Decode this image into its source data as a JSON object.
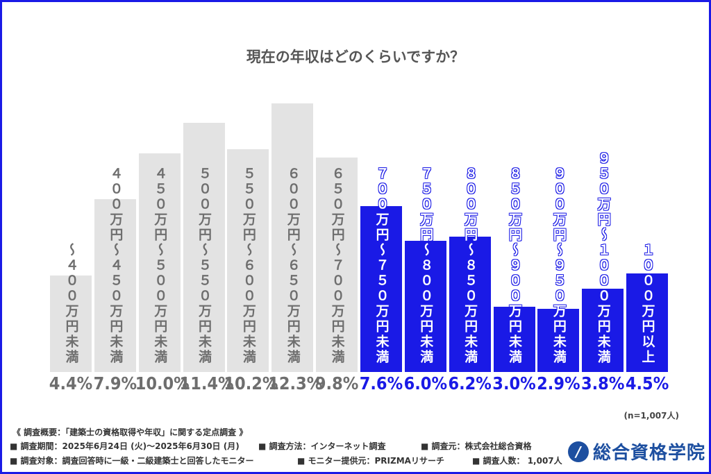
{
  "chart_data": {
    "type": "bar",
    "title": "現在の年収はどのくらいですか？",
    "categories": [
      "〜４００万円未満",
      "４００万円〜４５０万円未満",
      "４５０万円〜５００万円未満",
      "５００万円〜５５０万円未満",
      "５５０万円〜６００万円未満",
      "６００万円〜６５０万円未満",
      "６５０万円〜７００万円未満",
      "７００万円〜７５０万円未満",
      "７５０万円〜８００万円未満",
      "８００万円〜８５０万円未満",
      "８５０万円〜９００万円未満",
      "９００万円〜９５０万円未満",
      "９５０万円〜１０００万円未満",
      "１０００万円以上"
    ],
    "values": [
      4.4,
      7.9,
      10.0,
      11.4,
      10.2,
      12.3,
      9.8,
      7.6,
      6.0,
      6.2,
      3.0,
      2.9,
      3.8,
      4.5
    ],
    "value_labels": [
      "4.4%",
      "7.9%",
      "10.0%",
      "11.4%",
      "10.2%",
      "12.3%",
      "9.8%",
      "7.6%",
      "6.0%",
      "6.2%",
      "3.0%",
      "2.9%",
      "3.8%",
      "4.5%"
    ],
    "highlight_from_index": 7,
    "colors": {
      "base_bar": "#e3e3e3",
      "base_text": "#6e6e6e",
      "highlight_bar": "#1a1ae6",
      "highlight_text": "#1a1ae6",
      "title": "#555555"
    },
    "ylim": [
      0,
      13
    ],
    "grid": false,
    "xlabel": "",
    "ylabel": ""
  },
  "sample_note": "(n=1,007人)",
  "footer": {
    "heading": "《 調査概要：「建築士の資格取得や年収」に関する定点調査 》",
    "items": [
      "■ 調査期間：2025年6月24日 (火)〜2025年6月30日 (月)",
      "■ 調査方法：インターネット調査",
      "■ 調査元：株式会社総合資格",
      "■ 調査対象：調査回答時に一級・二級建築士と回答したモニター",
      "■ モニター提供元：PRIZMAリサーチ",
      "■ 調査人数： 1,007人"
    ]
  },
  "logo": {
    "text": "総合資格学院",
    "icon": "logo-mark-icon"
  }
}
